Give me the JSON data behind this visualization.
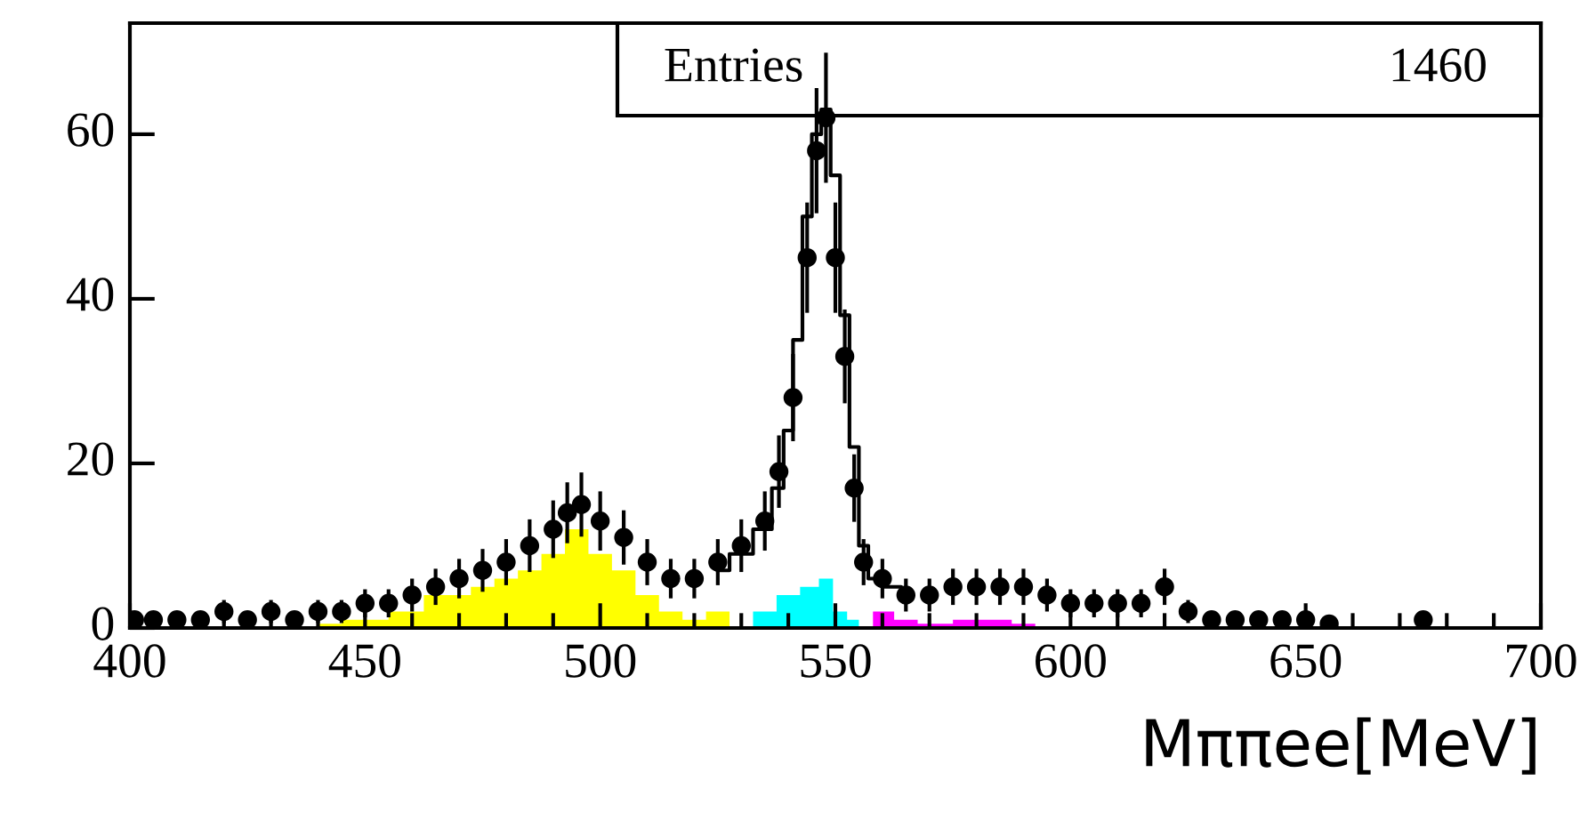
{
  "chart_data": {
    "type": "scatter",
    "xlabel": "Mππee[MeV]",
    "annotations": [
      "Entries",
      "1460"
    ],
    "xlim": [
      400,
      700
    ],
    "ylim": [
      0,
      73.5
    ],
    "xticks": [
      400,
      {
        "value": 410,
        "label": null
      },
      {
        "value": 420,
        "label": null
      },
      {
        "value": 430,
        "label": null
      },
      {
        "value": 440,
        "label": null
      },
      450,
      {
        "value": 460,
        "label": null
      },
      {
        "value": 470,
        "label": null
      },
      {
        "value": 480,
        "label": null
      },
      {
        "value": 490,
        "label": null
      },
      500,
      {
        "value": 510,
        "label": null
      },
      {
        "value": 520,
        "label": null
      },
      {
        "value": 530,
        "label": null
      },
      {
        "value": 540,
        "label": null
      },
      550,
      {
        "value": 560,
        "label": null
      },
      {
        "value": 570,
        "label": null
      },
      {
        "value": 580,
        "label": null
      },
      {
        "value": 590,
        "label": null
      },
      600,
      {
        "value": 610,
        "label": null
      },
      {
        "value": 620,
        "label": null
      },
      {
        "value": 630,
        "label": null
      },
      {
        "value": 640,
        "label": null
      },
      650,
      {
        "value": 660,
        "label": null
      },
      {
        "value": 670,
        "label": null
      },
      {
        "value": 680,
        "label": null
      },
      {
        "value": 690,
        "label": null
      },
      700
    ],
    "yticks": [
      0,
      20,
      40,
      60
    ],
    "grid": false,
    "legend": false,
    "series": [
      {
        "type": "area",
        "color": "#ffff00",
        "x": [
          440,
          450,
          460,
          465,
          470,
          475,
          480,
          485,
          490,
          495,
          500,
          505,
          510,
          515,
          520,
          525,
          530
        ],
        "values": [
          0.5,
          1,
          2,
          4,
          4,
          5,
          6,
          7,
          9,
          12,
          9,
          7,
          4,
          2,
          1,
          2,
          0
        ]
      },
      {
        "type": "area",
        "color": "#00ffff",
        "x": [
          530,
          535,
          540,
          545,
          548,
          551,
          554,
          556
        ],
        "values": [
          0,
          2,
          4,
          5,
          6,
          2,
          1,
          0
        ]
      },
      {
        "type": "area",
        "color": "#ff00ff",
        "x": [
          556,
          560,
          565,
          570,
          580,
          585,
          590,
          595
        ],
        "values": [
          0,
          2,
          1,
          0.5,
          1,
          1,
          0.5,
          0
        ]
      },
      {
        "type": "step",
        "color": "#000000",
        "x": [
          525,
          530,
          535,
          538,
          540,
          542,
          544,
          546,
          548,
          550,
          552,
          554,
          556,
          558,
          562,
          566
        ],
        "values": [
          7,
          9,
          12,
          17,
          24,
          35,
          50,
          60,
          63,
          55,
          38,
          22,
          10,
          6,
          5,
          4
        ]
      },
      {
        "color": "#000000",
        "marker": "circle",
        "x": [
          401,
          405,
          410,
          415,
          420,
          425,
          430,
          435,
          440,
          445,
          450,
          455,
          460,
          465,
          470,
          475,
          480,
          485,
          490,
          493,
          496,
          500,
          505,
          510,
          515,
          520,
          525,
          530,
          535,
          538,
          541,
          544,
          546,
          548,
          550,
          552,
          554,
          556,
          560,
          565,
          570,
          575,
          580,
          585,
          590,
          595,
          600,
          605,
          610,
          615,
          620,
          625,
          630,
          635,
          640,
          645,
          650,
          655,
          675
        ],
        "values": [
          1,
          1,
          1,
          1,
          2,
          1,
          2,
          1,
          2,
          2,
          3,
          3,
          4,
          5,
          6,
          7,
          8,
          10,
          12,
          14,
          15,
          13,
          11,
          8,
          6,
          6,
          8,
          10,
          13,
          19,
          28,
          45,
          58,
          62,
          45,
          33,
          17,
          8,
          6,
          4,
          4,
          5,
          5,
          5,
          5,
          4,
          3,
          3,
          3,
          3,
          5,
          2,
          1,
          1,
          1,
          1,
          1,
          0.5,
          1
        ],
        "errors": [
          1,
          1,
          1,
          1,
          1.4,
          1,
          1.4,
          1,
          1.4,
          1.4,
          1.7,
          1.7,
          2,
          2.2,
          2.4,
          2.6,
          2.8,
          3.2,
          3.5,
          3.7,
          3.9,
          3.6,
          3.3,
          2.8,
          2.4,
          2.4,
          2.8,
          3.2,
          3.6,
          4.4,
          5.3,
          6.7,
          7.6,
          7.9,
          6.7,
          5.7,
          4.1,
          2.8,
          2.4,
          2,
          2,
          2.2,
          2.2,
          2.2,
          2.2,
          2,
          1.7,
          1.7,
          1.7,
          1.7,
          2.2,
          1.4,
          1,
          1,
          1,
          1,
          1,
          0.7,
          1
        ]
      }
    ]
  }
}
